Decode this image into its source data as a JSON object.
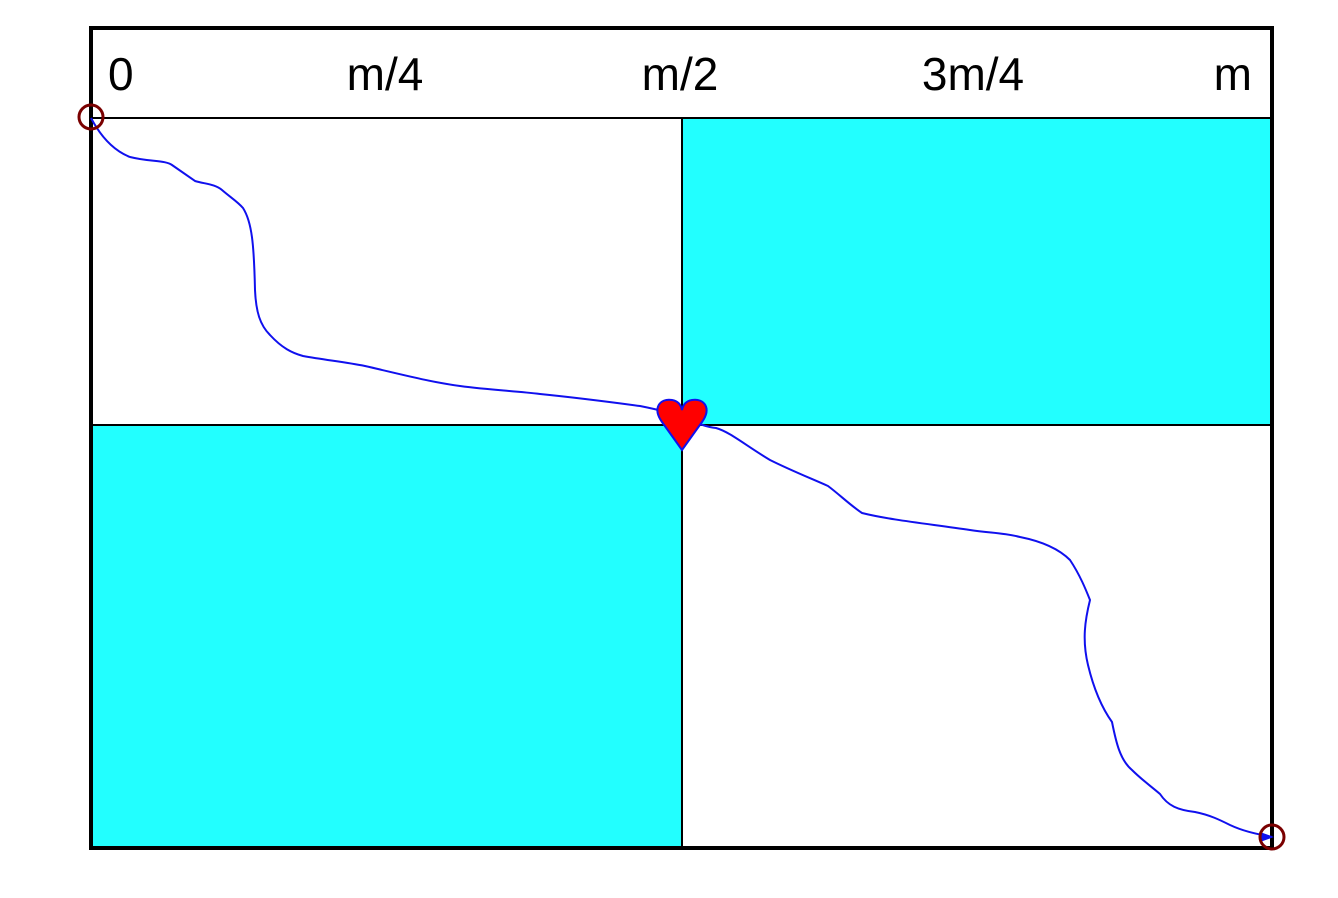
{
  "axis": {
    "labels": [
      "0",
      "m/4",
      "m/2",
      "3m/4",
      "m"
    ]
  },
  "colors": {
    "quadrant_fill": "#22ffff",
    "path": "#1010ee",
    "heart": "#ff0000",
    "endpoint": "#7a0000",
    "border": "#000000"
  },
  "shaded_quadrants": [
    "top-right",
    "bottom-left"
  ],
  "path_crosses_at": "m/2",
  "markers": {
    "start": "circle",
    "middle": "heart",
    "end": "circle"
  }
}
